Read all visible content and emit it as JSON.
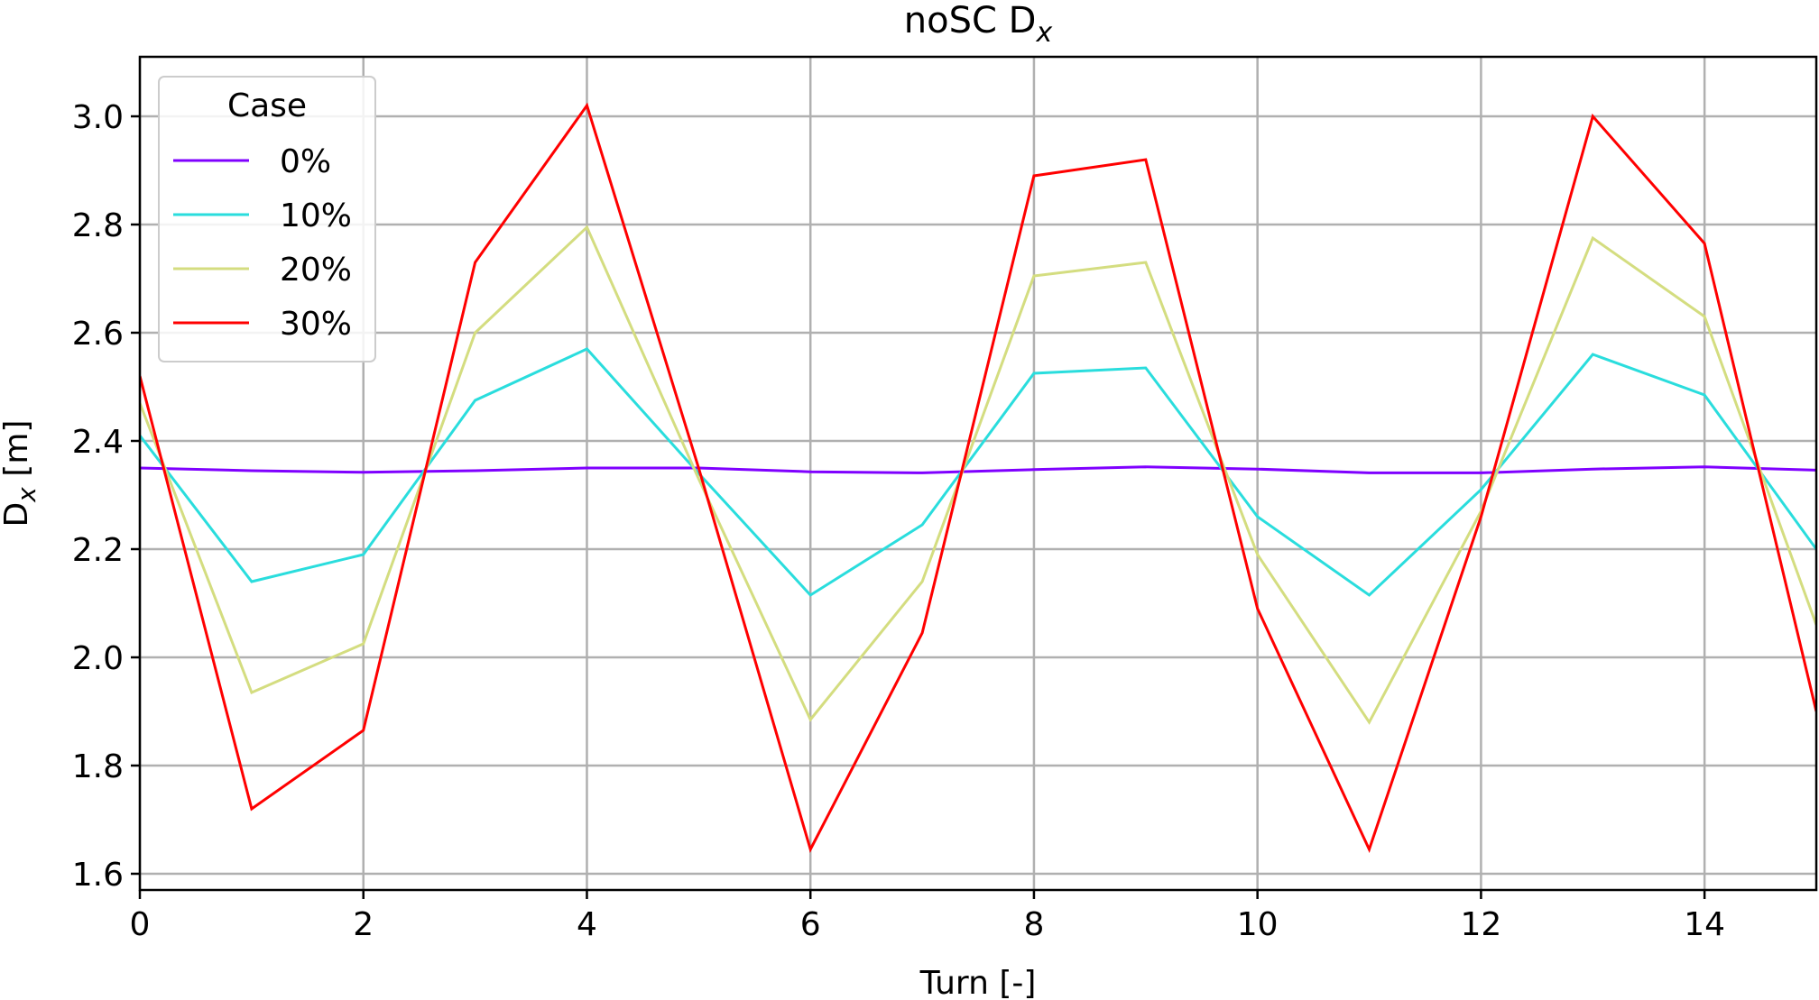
{
  "chart_data": {
    "type": "line",
    "title": "noSC D",
    "title_sub": "x",
    "xlabel": "Turn [-]",
    "ylabel": "D",
    "ylabel_sub": "x",
    "ylabel_unit": " [m]",
    "xlim": [
      0,
      15
    ],
    "ylim": [
      1.57,
      3.11
    ],
    "xticks": [
      0,
      2,
      4,
      6,
      8,
      10,
      12,
      14
    ],
    "yticks": [
      1.6,
      1.8,
      2.0,
      2.2,
      2.4,
      2.6,
      2.8,
      3.0
    ],
    "ytick_labels": [
      "1.6",
      "1.8",
      "2.0",
      "2.2",
      "2.4",
      "2.6",
      "2.8",
      "3.0"
    ],
    "grid": true,
    "legend": {
      "title": "Case",
      "placement": "upper-left"
    },
    "x": [
      0,
      1,
      2,
      3,
      4,
      5,
      6,
      7,
      8,
      9,
      10,
      11,
      12,
      13,
      14,
      15
    ],
    "series": [
      {
        "name": "0%",
        "color": "#7f00ff",
        "values": [
          2.35,
          2.345,
          2.342,
          2.345,
          2.35,
          2.35,
          2.343,
          2.341,
          2.347,
          2.352,
          2.348,
          2.341,
          2.341,
          2.348,
          2.352,
          2.346
        ]
      },
      {
        "name": "10%",
        "color": "#2adddd",
        "values": [
          2.41,
          2.14,
          2.19,
          2.475,
          2.57,
          2.34,
          2.115,
          2.245,
          2.525,
          2.535,
          2.26,
          2.115,
          2.31,
          2.56,
          2.485,
          2.2
        ]
      },
      {
        "name": "20%",
        "color": "#d4dd80",
        "values": [
          2.47,
          1.935,
          2.025,
          2.6,
          2.795,
          2.33,
          1.885,
          2.14,
          2.705,
          2.73,
          2.19,
          1.88,
          2.27,
          2.775,
          2.63,
          2.06
        ]
      },
      {
        "name": "30%",
        "color": "#ff0000",
        "values": [
          2.52,
          1.72,
          1.865,
          2.73,
          3.02,
          2.35,
          1.645,
          2.045,
          2.89,
          2.92,
          2.09,
          1.645,
          2.26,
          3.0,
          2.765,
          1.9
        ]
      }
    ]
  }
}
